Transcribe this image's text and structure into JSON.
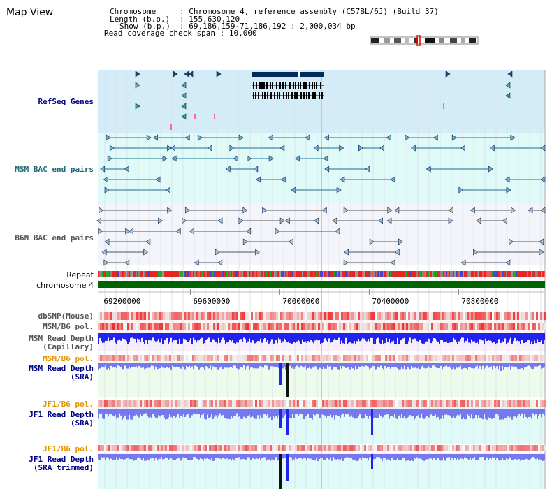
{
  "title": "Map View",
  "info": {
    "chromosome_key": "Chromosome",
    "chromosome_value": "Chromosome 4, reference assembly (C57BL/6J) (Build 37)",
    "length_key": "Length (b.p.)",
    "length_value": "155,630,120",
    "show_key": "Show (b.p.)",
    "show_value": "69,186,159-71,186,192 : 2,000,034 bp",
    "coverage_key": "Read coverage check span",
    "coverage_value": "10,000"
  },
  "colors": {
    "refseq_bg": "#d4ecf8",
    "msm_bac_bg": "#e0faf8",
    "b6n_bac_bg": "#f4f4fb",
    "gene_dark": "#002b5c",
    "msm_bac_line": "#1f6e8c",
    "b6n_bac_line": "#555555",
    "chromosome_bar": "#006400",
    "pol_red": "#ee3333",
    "depth_blue": "#2222ee",
    "depth_lavender": "#7777ee",
    "orange_label": "#e59400",
    "navy_label": "#000088",
    "teal_label": "#206878"
  },
  "tracks": {
    "refseq_label": "RefSeq Genes",
    "msm_bac_label": "MSM BAC end pairs",
    "b6n_bac_label": "B6N BAC end pairs",
    "repeat_label": "Repeat",
    "chromosome_label": "chromosome 4",
    "dbsnp_label": "dbSNP(Mouse)",
    "msm_b6_pol_label": "MSM/B6 pol.",
    "msm_depth_cap_label_1": "MSM Read Depth",
    "msm_depth_cap_label_2": "(Capillary)",
    "msm_b6_pol_label_2": "MSM/B6 pol.",
    "msm_depth_sra_label_1": "MSM Read Depth",
    "msm_depth_sra_label_2": "(SRA)",
    "jf1_b6_pol_label": "JF1/B6 pol.",
    "jf1_depth_sra_label_1": "JF1 Read Depth",
    "jf1_depth_sra_label_2": "(SRA)",
    "jf1_b6_pol_label_2": "JF1/B6 pol.",
    "jf1_depth_trim_label_1": "JF1 Read Depth",
    "jf1_depth_trim_label_2": "(SRA trimmed)"
  },
  "axis": {
    "start": 69186159,
    "end": 71186192,
    "ticks": [
      "69200000",
      "69600000",
      "70000000",
      "70400000",
      "70800000"
    ]
  }
}
